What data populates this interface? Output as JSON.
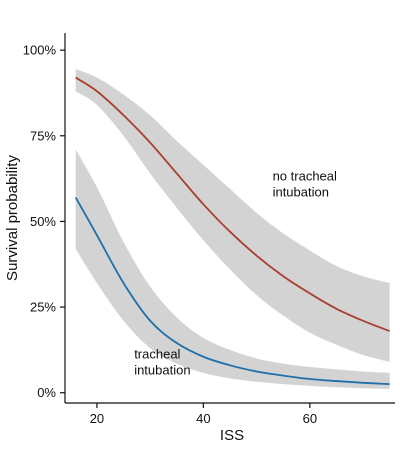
{
  "chart_data": {
    "type": "line",
    "xlabel": "ISS",
    "ylabel": "Survival probability",
    "xlim": [
      14,
      76
    ],
    "ylim": [
      -0.03,
      1.05
    ],
    "x_ticks": [
      20,
      40,
      60
    ],
    "y_ticks": [
      0,
      0.25,
      0.5,
      0.75,
      1.0
    ],
    "y_tick_labels": [
      "0%",
      "25%",
      "50%",
      "75%",
      "100%"
    ],
    "grid": false,
    "legend": "none",
    "series": [
      {
        "name": "no tracheal intubation",
        "color": "#a8402f",
        "x": [
          16,
          20,
          25,
          30,
          35,
          40,
          45,
          50,
          55,
          60,
          65,
          70,
          75
        ],
        "y": [
          0.92,
          0.88,
          0.81,
          0.73,
          0.64,
          0.55,
          0.47,
          0.4,
          0.34,
          0.29,
          0.245,
          0.21,
          0.18
        ],
        "upper": [
          0.945,
          0.92,
          0.87,
          0.81,
          0.735,
          0.665,
          0.595,
          0.525,
          0.465,
          0.415,
          0.37,
          0.34,
          0.32
        ],
        "lower": [
          0.88,
          0.84,
          0.75,
          0.64,
          0.54,
          0.445,
          0.36,
          0.285,
          0.225,
          0.175,
          0.14,
          0.11,
          0.09
        ]
      },
      {
        "name": "tracheal intubation",
        "color": "#1f6fa8",
        "x": [
          16,
          20,
          25,
          30,
          35,
          40,
          45,
          50,
          55,
          60,
          65,
          70,
          75
        ],
        "y": [
          0.57,
          0.46,
          0.32,
          0.21,
          0.145,
          0.105,
          0.08,
          0.062,
          0.05,
          0.04,
          0.034,
          0.029,
          0.025
        ],
        "upper": [
          0.71,
          0.6,
          0.44,
          0.31,
          0.22,
          0.16,
          0.125,
          0.1,
          0.085,
          0.075,
          0.068,
          0.062,
          0.058
        ],
        "lower": [
          0.42,
          0.32,
          0.21,
          0.13,
          0.085,
          0.058,
          0.042,
          0.032,
          0.025,
          0.02,
          0.016,
          0.013,
          0.011
        ]
      }
    ],
    "annotations": [
      {
        "lines": [
          "no tracheal",
          "intubation"
        ],
        "x": 53,
        "y": 0.62,
        "series": 0
      },
      {
        "lines": [
          "tracheal",
          "intubation"
        ],
        "x": 27,
        "y": 0.1,
        "series": 1
      }
    ],
    "band_color": "#d3d3d3"
  }
}
